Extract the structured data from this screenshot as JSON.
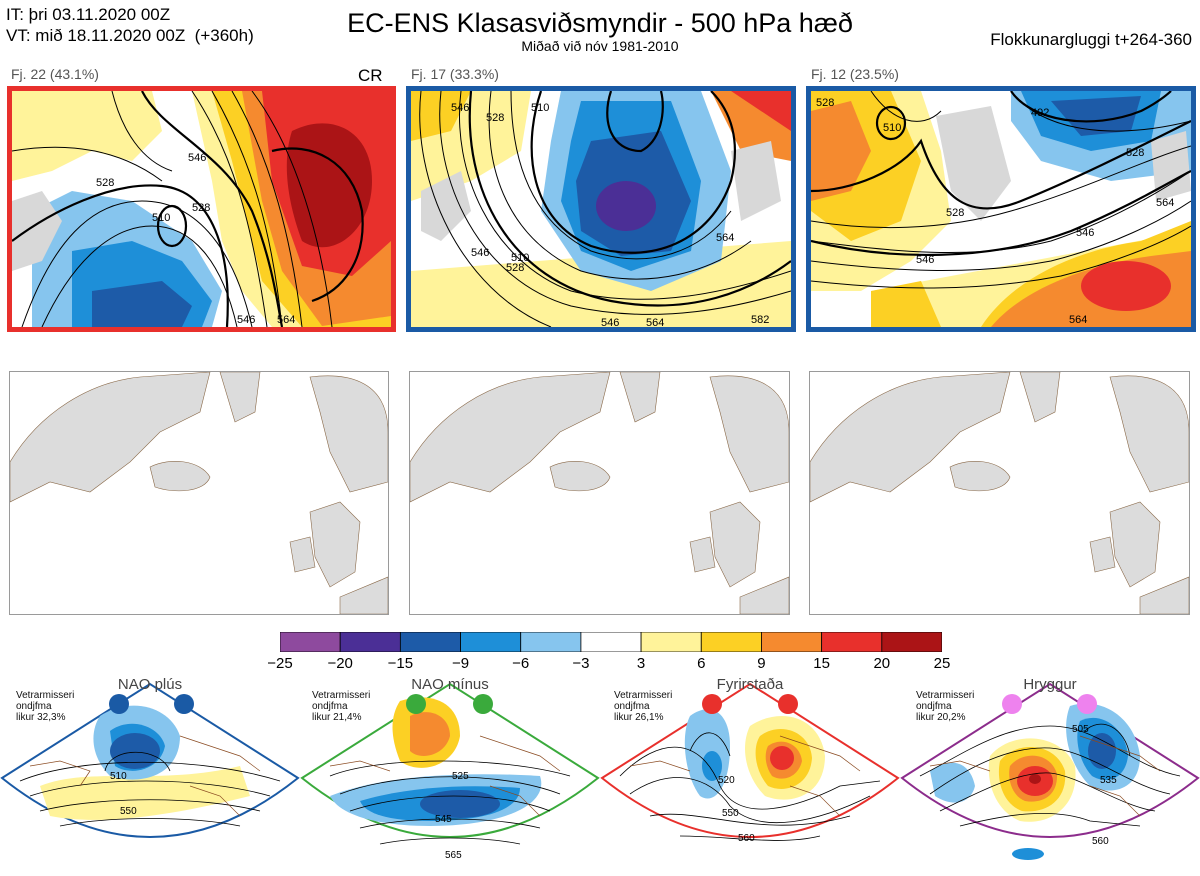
{
  "header": {
    "it_line": "IT: þri 03.11.2020 00Z",
    "vt_line": "VT: mið 18.11.2020 00Z  (+360h)",
    "title": "EC-ENS Klasasviðsmyndir - 500 hPa hæð",
    "subtitle": "Miðað við nóv 1981-2010",
    "window": "Flokkunargluggi t+264-360"
  },
  "clusters": [
    {
      "label": "Fj. 22 (43.1%)",
      "members": 22,
      "percent": 43.1,
      "tag": "CR",
      "frame_color": "#e8302c",
      "contour_labels": [
        "528",
        "546",
        "510",
        "528",
        "546",
        "564"
      ]
    },
    {
      "label": "Fj. 17 (33.3%)",
      "members": 17,
      "percent": 33.3,
      "tag": "",
      "frame_color": "#1a5aa5",
      "contour_labels": [
        "546",
        "528",
        "510",
        "528",
        "510",
        "546",
        "564",
        "546",
        "564",
        "582"
      ]
    },
    {
      "label": "Fj. 12 (23.5%)",
      "members": 12,
      "percent": 23.5,
      "tag": "",
      "frame_color": "#1a5aa5",
      "contour_labels": [
        "528",
        "510",
        "492",
        "528",
        "528",
        "546",
        "546",
        "564",
        "564"
      ]
    }
  ],
  "colorbar": {
    "ticks": [
      "−25",
      "−20",
      "−15",
      "−9",
      "−6",
      "−3",
      "3",
      "6",
      "9",
      "15",
      "20",
      "25"
    ],
    "colors": [
      "#8e4a9e",
      "#4b2f96",
      "#1d5ba8",
      "#1e8fd8",
      "#86c5ee",
      "#ffffff",
      "#fff39a",
      "#fcd024",
      "#f58a2f",
      "#e8302c",
      "#ab1416"
    ]
  },
  "regimes": [
    {
      "name": "NAO plús",
      "note": "Vetrarmisseri\nondjfma\nlikur 32,3%",
      "color": "#1a5aa5",
      "labels": [
        "510",
        "550"
      ]
    },
    {
      "name": "NAO mínus",
      "note": "Vetrarmisseri\nondjfma\nlikur 21,4%",
      "color": "#3aaa3c",
      "labels": [
        "525",
        "545",
        "565"
      ]
    },
    {
      "name": "Fyrirstaða",
      "note": "Vetrarmisseri\nondjfma\nlikur 26,1%",
      "color": "#e8302c",
      "labels": [
        "520",
        "550",
        "560"
      ]
    },
    {
      "name": "Hryggur",
      "note": "Vetrarmisseri\nondjfma\nlikur 20,2%",
      "color": "#8c2c8c",
      "labels": [
        "505",
        "535",
        "560"
      ]
    }
  ]
}
